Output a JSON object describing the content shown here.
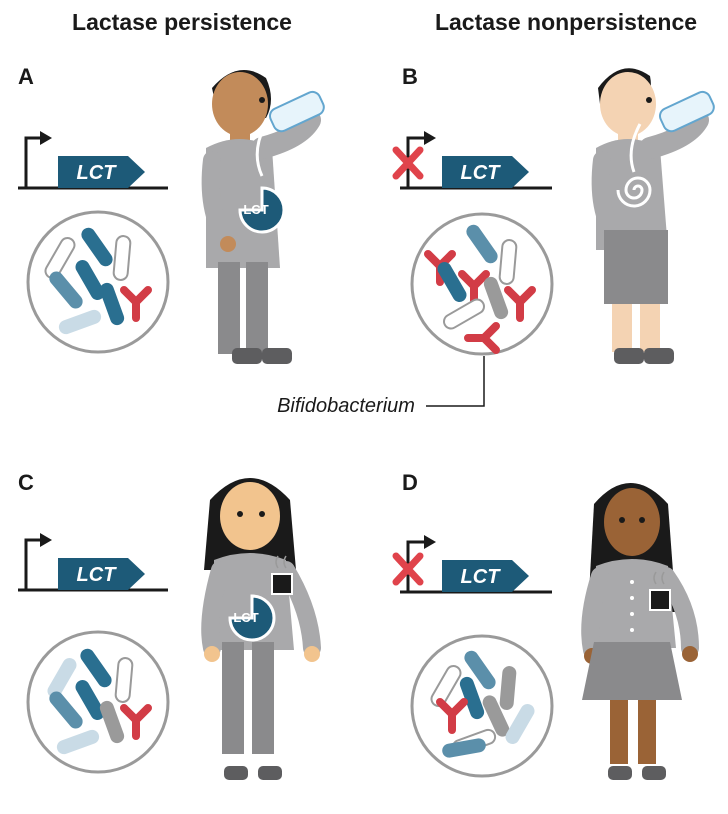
{
  "headers": {
    "left": "Lactase persistence",
    "right": "Lactase nonpersistence"
  },
  "panels": [
    {
      "label": "A",
      "gene": "LCT",
      "badge": "LCT",
      "blocked": false
    },
    {
      "label": "B",
      "gene": "LCT",
      "blocked": true
    },
    {
      "label": "C",
      "gene": "LCT",
      "badge": "LCT",
      "blocked": false
    },
    {
      "label": "D",
      "gene": "LCT",
      "blocked": true
    }
  ],
  "callout": "Bifidobacterium",
  "colors": {
    "gene_arrow": "#1d5a78",
    "bacteria_red": "#d23c46",
    "bacteria_dark_blue": "#2a6f90",
    "bacteria_mid_blue": "#5b8faa",
    "bacteria_light": "#c9dbe6",
    "bacteria_gray": "#9a9a9a",
    "block_x": "#e0434b",
    "shirt": "#a9a9ab",
    "pants": "#8a8a8c"
  }
}
